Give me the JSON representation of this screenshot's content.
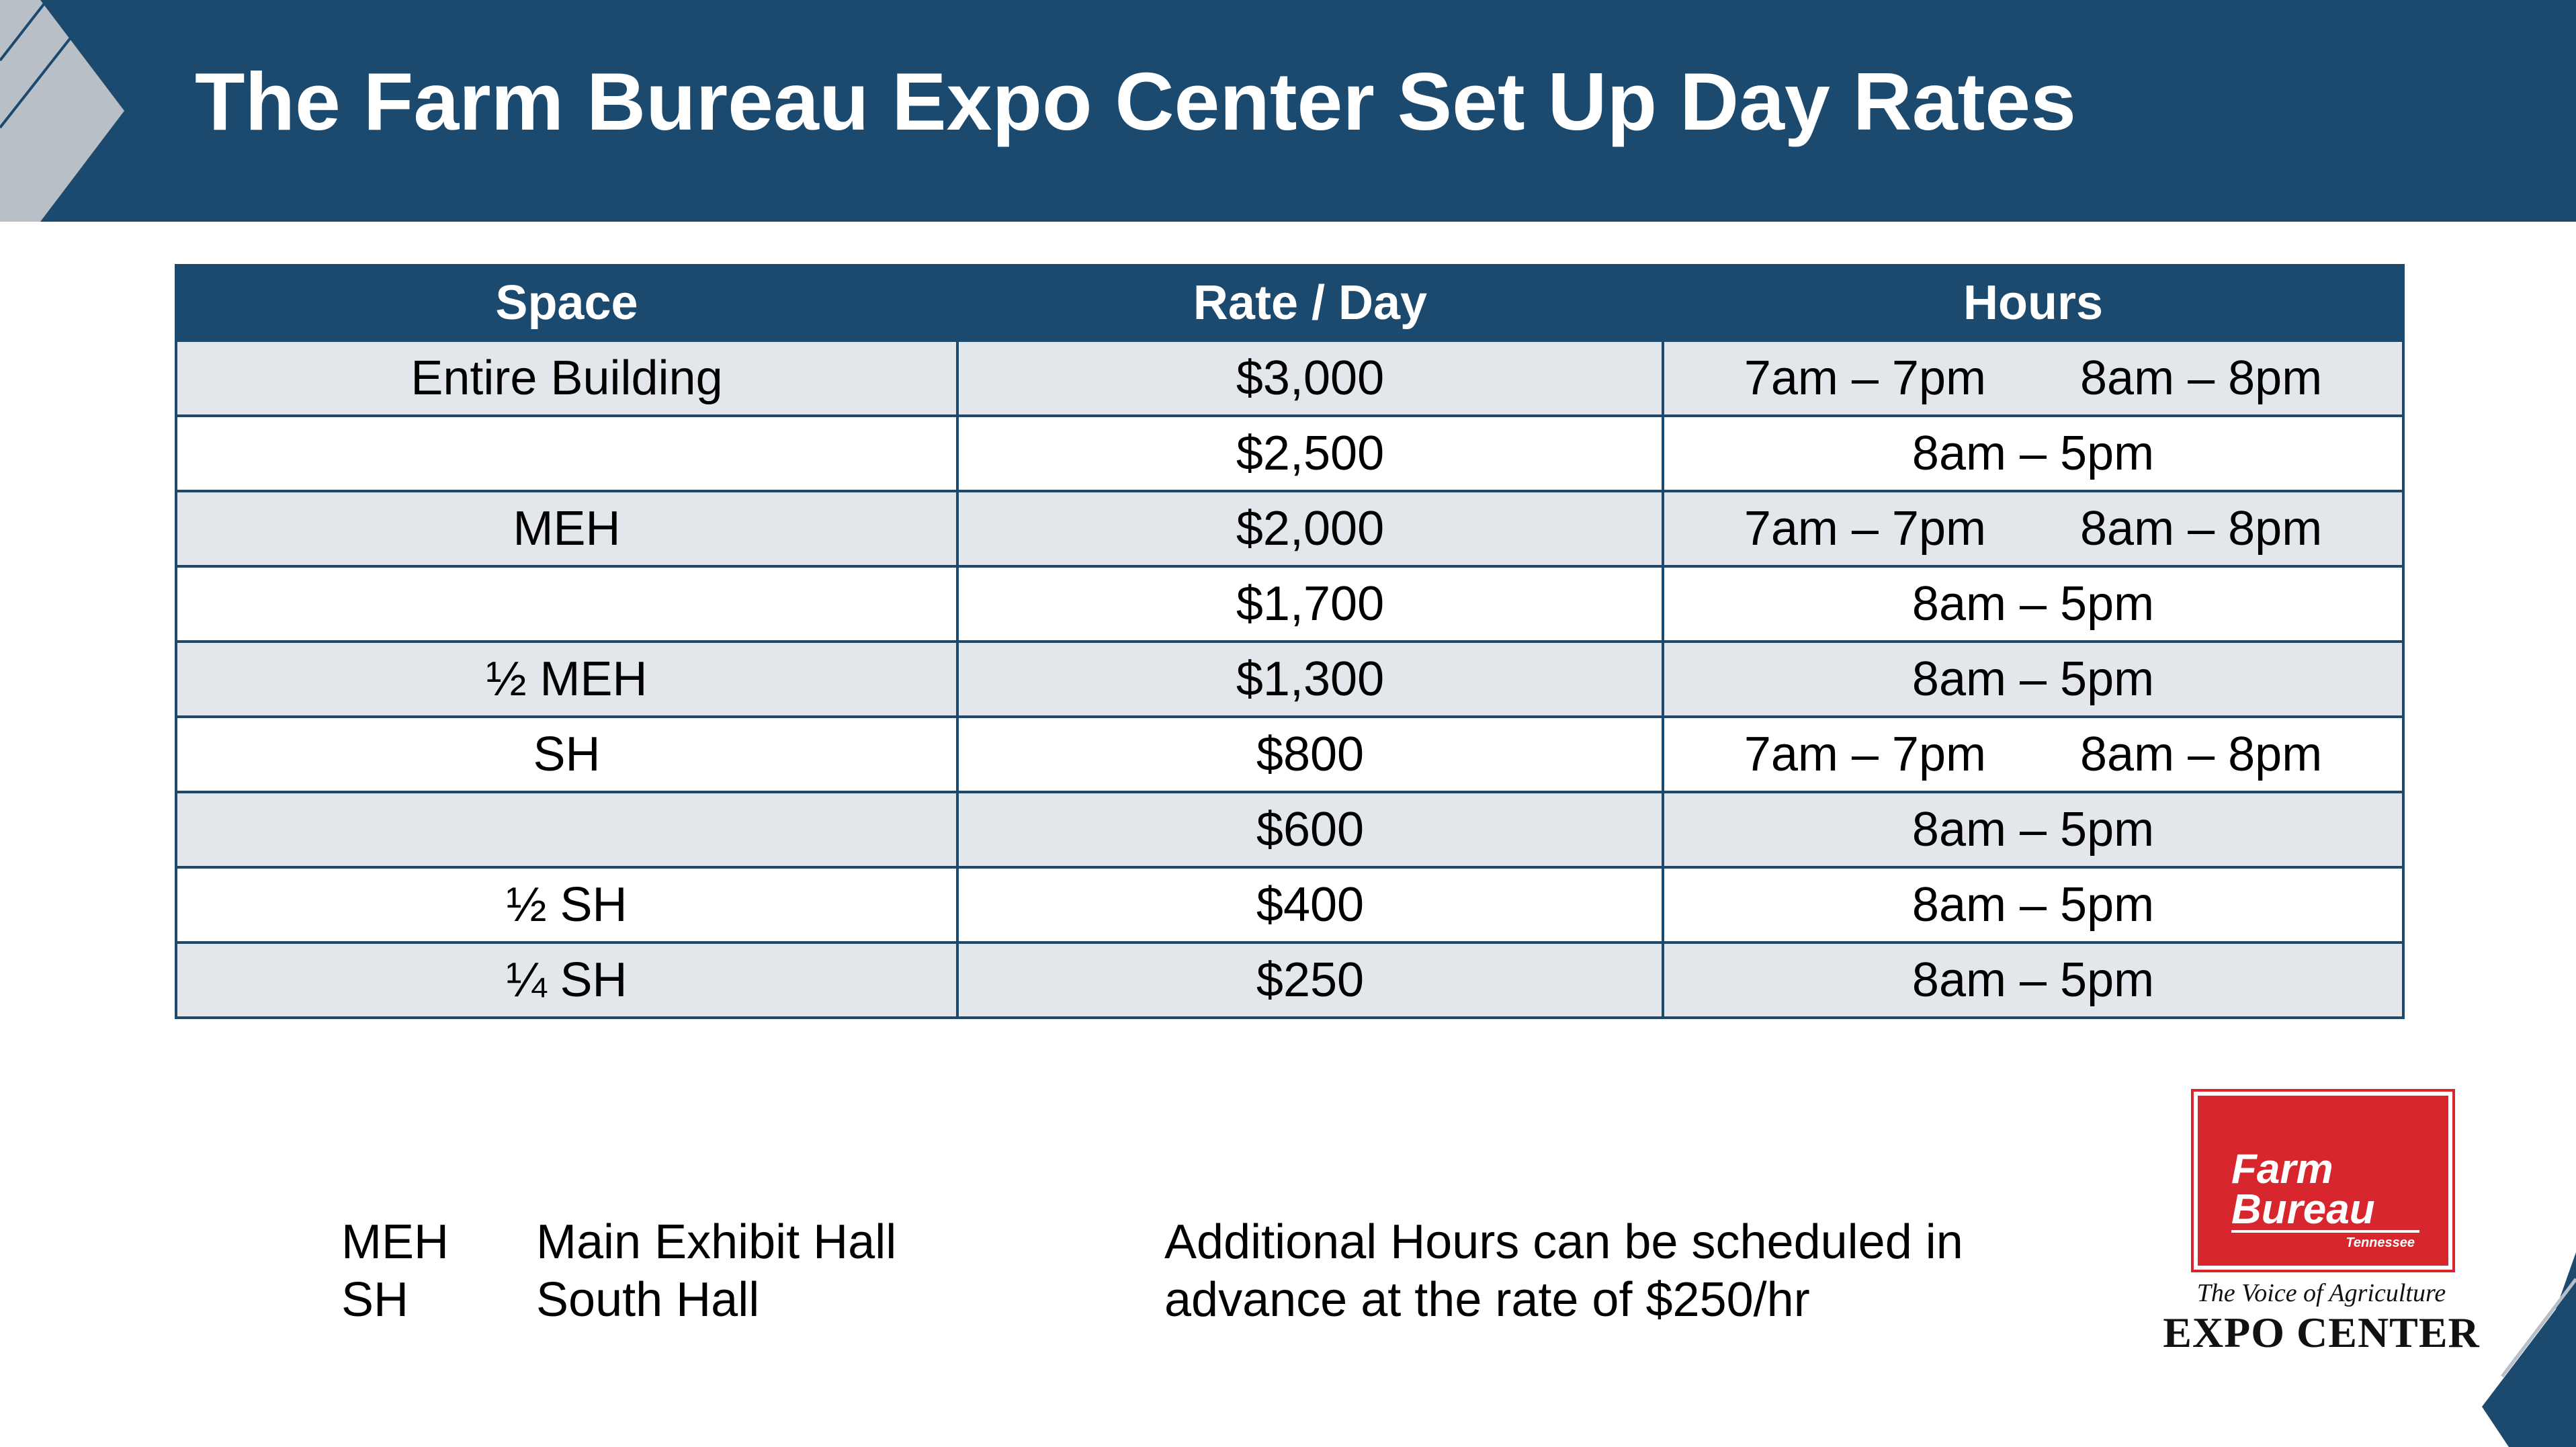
{
  "title": "The Farm Bureau Expo Center Set Up Day Rates",
  "table": {
    "headers": [
      "Space",
      "Rate / Day",
      "Hours"
    ],
    "rows": [
      {
        "space": "Entire Building",
        "rate": "$3,000",
        "hours": [
          "7am – 7pm",
          "8am – 8pm"
        ]
      },
      {
        "space": "",
        "rate": "$2,500",
        "hours": [
          "8am – 5pm"
        ]
      },
      {
        "space": "MEH",
        "rate": "$2,000",
        "hours": [
          "7am – 7pm",
          "8am – 8pm"
        ]
      },
      {
        "space": "",
        "rate": "$1,700",
        "hours": [
          "8am – 5pm"
        ]
      },
      {
        "space": "½ MEH",
        "rate": "$1,300",
        "hours": [
          "8am – 5pm"
        ]
      },
      {
        "space": "SH",
        "rate": "$800",
        "hours": [
          "7am – 7pm",
          "8am – 8pm"
        ]
      },
      {
        "space": "",
        "rate": "$600",
        "hours": [
          "8am – 5pm"
        ]
      },
      {
        "space": "½ SH",
        "rate": "$400",
        "hours": [
          "8am – 5pm"
        ]
      },
      {
        "space": "¼ SH",
        "rate": "$250",
        "hours": [
          "8am – 5pm"
        ]
      }
    ]
  },
  "legend": [
    {
      "abbr": "MEH",
      "meaning": "Main Exhibit Hall"
    },
    {
      "abbr": "SH",
      "meaning": "South Hall"
    }
  ],
  "note": {
    "line1": "Additional Hours can be scheduled in",
    "line2": "advance at the rate of $250/hr"
  },
  "logo": {
    "brand_line1": "Farm",
    "brand_line2": "Bureau",
    "state": "Tennessee",
    "tagline": "The Voice of Agriculture",
    "name": "EXPO CENTER"
  },
  "colors": {
    "header_bg": "#1c4a6e",
    "row_shaded": "#e3e6ea",
    "logo_red": "#d7262e"
  }
}
